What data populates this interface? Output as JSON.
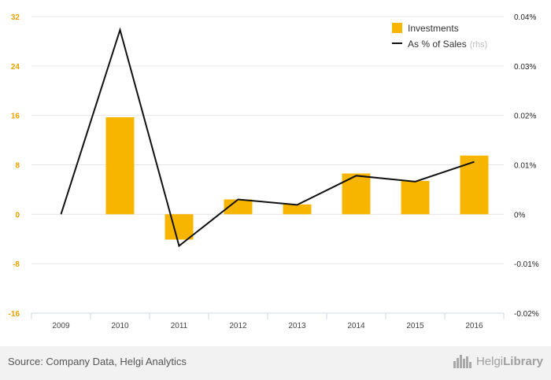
{
  "chart_data": {
    "type": "bar",
    "categories": [
      "2009",
      "2010",
      "2011",
      "2012",
      "2013",
      "2014",
      "2015",
      "2016"
    ],
    "series": [
      {
        "name": "Investments",
        "type": "bar",
        "axis": "left",
        "values": [
          0,
          15.7,
          -4.1,
          2.4,
          1.6,
          6.6,
          5.4,
          9.5
        ]
      },
      {
        "name": "As % of Sales",
        "legend_note": "(rhs)",
        "type": "line",
        "axis": "right",
        "values": [
          0.0,
          0.0373,
          -0.0064,
          0.003,
          0.0019,
          0.0078,
          0.0066,
          0.0106
        ]
      }
    ],
    "ylim": [
      -16,
      32
    ],
    "yticks": [
      "32",
      "24",
      "16",
      "8",
      "0",
      "-8",
      "-16"
    ],
    "y2lim": [
      -0.02,
      0.04
    ],
    "y2ticks": [
      "0.04%",
      "0.03%",
      "0.02%",
      "0.01%",
      "0%",
      "-0.01%",
      "-0.02%"
    ],
    "grid": true,
    "legend": "top-right",
    "colors": {
      "bar": "#f7b500",
      "line": "#111111",
      "grid": "#e6e6e6",
      "left_ticks": "#e8a200"
    }
  },
  "footer": {
    "source": "Source: Company Data, Helgi Analytics",
    "brand_prefix": "Helgi",
    "brand_suffix": "Library",
    "brand_icon": "city-skyline-icon"
  }
}
